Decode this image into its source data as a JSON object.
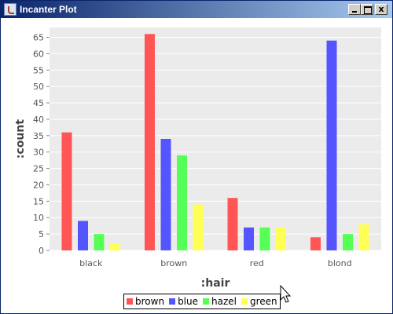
{
  "window": {
    "title": "Incanter Plot",
    "minimize_label": "_",
    "maximize_label": "",
    "close_label": "x"
  },
  "chart_data": {
    "type": "bar",
    "title": "",
    "xlabel": ":hair",
    "ylabel": ":count",
    "categories": [
      "black",
      "brown",
      "red",
      "blond"
    ],
    "series": [
      {
        "name": "brown",
        "color": "#ff5555",
        "values": [
          36,
          66,
          16,
          4
        ]
      },
      {
        "name": "blue",
        "color": "#5555ff",
        "values": [
          9,
          34,
          7,
          64
        ]
      },
      {
        "name": "hazel",
        "color": "#55ff55",
        "values": [
          5,
          29,
          7,
          5
        ]
      },
      {
        "name": "green",
        "color": "#ffff55",
        "values": [
          2,
          14,
          7,
          8
        ]
      }
    ],
    "ylim": [
      0,
      68
    ],
    "yticks": [
      0,
      5,
      10,
      15,
      20,
      25,
      30,
      35,
      40,
      45,
      50,
      55,
      60,
      65
    ],
    "grid": true,
    "legend_position": "bottom-center",
    "plot_background": "#ebebeb"
  }
}
